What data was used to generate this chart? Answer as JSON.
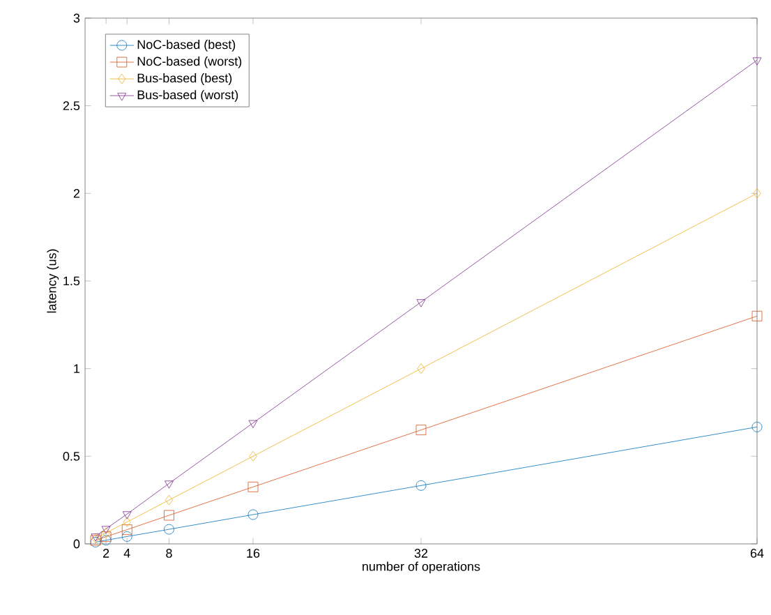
{
  "chart_data": {
    "type": "line",
    "xlabel": "number of operations",
    "ylabel": "latency (us)",
    "x": [
      1,
      2,
      4,
      8,
      16,
      32,
      64
    ],
    "series": [
      {
        "name": "NoC-based (best)",
        "color": "#0072bd",
        "marker": "circle",
        "values": [
          0.01,
          0.021,
          0.042,
          0.083,
          0.167,
          0.333,
          0.667
        ]
      },
      {
        "name": "NoC-based (worst)",
        "color": "#d95319",
        "marker": "square",
        "values": [
          0.02,
          0.041,
          0.081,
          0.163,
          0.325,
          0.65,
          1.3
        ]
      },
      {
        "name": "Bus-based (best)",
        "color": "#edb120",
        "marker": "diamond",
        "values": [
          0.031,
          0.063,
          0.125,
          0.25,
          0.5,
          1.0,
          2.0
        ]
      },
      {
        "name": "Bus-based (worst)",
        "color": "#7e2f8e",
        "marker": "triangle",
        "values": [
          0.043,
          0.086,
          0.17,
          0.345,
          0.69,
          1.38,
          2.76
        ]
      }
    ],
    "xlim": [
      0,
      64
    ],
    "xticks": [
      2,
      4,
      8,
      16,
      32,
      64
    ],
    "ylim": [
      0,
      3
    ],
    "yticks": [
      0,
      0.5,
      1,
      1.5,
      2,
      2.5,
      3
    ],
    "legend": "top left",
    "grid": false,
    "line_style": "solid"
  }
}
